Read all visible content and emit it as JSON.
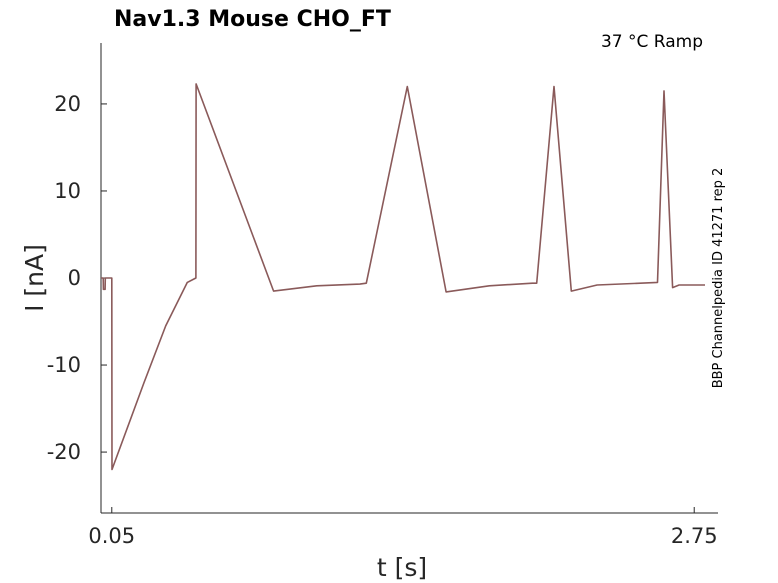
{
  "colors": {
    "trace": "#8a5a5a",
    "axis": "#262626"
  },
  "chart_data": {
    "type": "line",
    "title": "Nav1.3  Mouse  CHO_FT",
    "condition": "37 °C  Ramp",
    "side_label": "BBP Channelpedia ID 41271 rep 2",
    "xlabel": "t [s]",
    "ylabel": "I [nA]",
    "xlim": [
      0.0,
      2.8
    ],
    "ylim": [
      -27,
      27
    ],
    "x_ticks": [
      0.05,
      2.75
    ],
    "x_tick_labels": [
      "0.05",
      "2.75"
    ],
    "y_ticks": [
      -20,
      -10,
      0,
      10,
      20
    ],
    "y_tick_labels": [
      "-20",
      "-10",
      "0",
      "10",
      "20"
    ],
    "grid": false,
    "series": [
      {
        "x": [
          0.0,
          0.01,
          0.011,
          0.019,
          0.02,
          0.05,
          0.051,
          0.2,
          0.3,
          0.4,
          0.44,
          0.441,
          0.8,
          1.0,
          1.2,
          1.23,
          1.42,
          1.6,
          1.8,
          2.0,
          2.02,
          2.1,
          2.18,
          2.3,
          2.5,
          2.58,
          2.61,
          2.65,
          2.68,
          2.8
        ],
        "y": [
          0.0,
          0.0,
          -1.3,
          -1.3,
          0.0,
          0.0,
          -22.0,
          -12.0,
          -5.5,
          -0.5,
          0.0,
          22.3,
          -1.5,
          -0.9,
          -0.7,
          -0.6,
          22.0,
          -1.6,
          -0.9,
          -0.6,
          -0.6,
          22.0,
          -1.5,
          -0.8,
          -0.6,
          -0.5,
          21.5,
          -1.1,
          -0.8,
          -0.8
        ]
      }
    ]
  }
}
